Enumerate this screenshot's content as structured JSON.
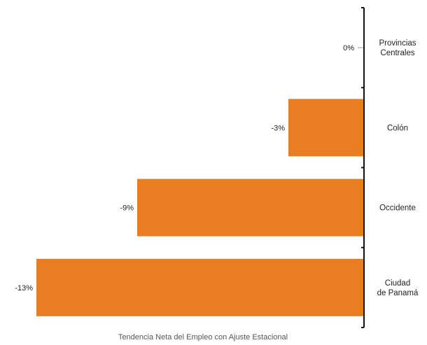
{
  "chart_data": {
    "type": "bar",
    "orientation": "horizontal",
    "categories": [
      [
        "Provincias",
        "Centrales"
      ],
      [
        "Colón"
      ],
      [
        "Occidente"
      ],
      [
        "Ciudad",
        "de Panamá"
      ]
    ],
    "values": [
      0,
      -3,
      -9,
      -13
    ],
    "value_labels": [
      "0%",
      "-3%",
      "-9%",
      "-13%"
    ],
    "xlabel": "Tendencia Neta del Empleo con Ajuste Estacional",
    "ylabel": "",
    "xlim": [
      -13,
      0
    ],
    "grid": false,
    "legend": "none",
    "bar_color": "#E87D24",
    "axis_color": "#111111"
  }
}
